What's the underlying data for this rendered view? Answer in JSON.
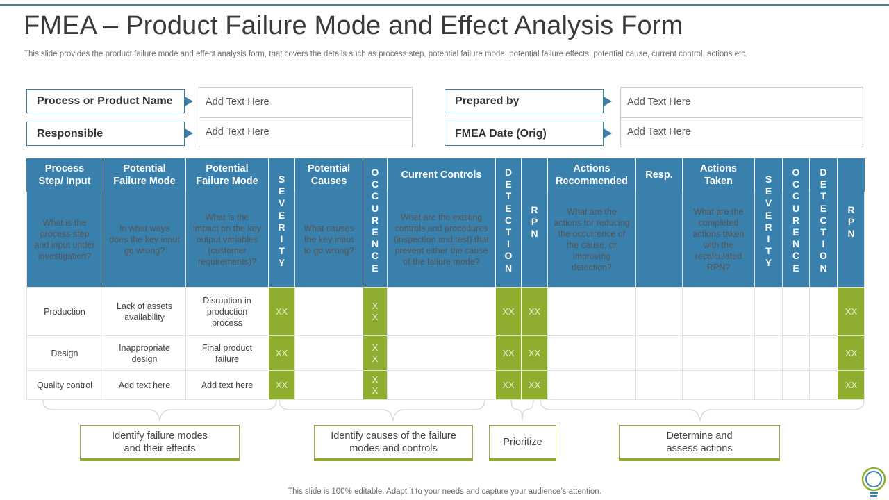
{
  "title": "FMEA – Product Failure Mode and Effect Analysis Form",
  "subtitle": "This slide provides the product failure mode and effect analysis form, that covers the details such as process step, potential failure mode, potential failure effects, potential cause, current control, actions etc.",
  "form": {
    "process_label": "Process or Product Name",
    "responsible_label": "Responsible",
    "prepared_label": "Prepared by",
    "date_label": "FMEA Date (Orig)",
    "placeholder": "Add Text Here"
  },
  "table": {
    "headers": {
      "process_step": "Process Step/ Input",
      "failure_mode_1": "Potential Failure Mode",
      "failure_mode_2": "Potential Failure Mode",
      "severity": "SEVERITY",
      "causes": "Potential Causes",
      "occurence": "OCCURENCE",
      "controls": "Current Controls",
      "detection": "DETECTION",
      "rpn": "RPN",
      "actions_recommended": "Actions Recommended",
      "resp": "Resp.",
      "actions_taken": "Actions Taken",
      "severity_2": "SEVERITY",
      "occurence_2": "OCCURENCE",
      "detection_2": "DETECTION",
      "rpn_2": "RPN"
    },
    "descriptions": {
      "process_step": "What is the process step and input under investigation?",
      "failure_mode_1": "In what ways does the key input go wrong?",
      "failure_mode_2": "What is the impact on the key output variables (customer requirements)?",
      "causes": "What causes the key input to go wrong?",
      "controls": "What are the existing controls and procedures (inspection and test) that prevent either the cause of the failure mode?",
      "actions_recommended": "What are the actions for reducing the occurrence of the cause, or improving detection?",
      "actions_taken": "What are the completed actions taken with the recalculated RPN?"
    },
    "rows": [
      {
        "step": "Production",
        "mode": "Lack of assets availability",
        "effect": "Disruption in production process",
        "severity": "XX",
        "occurence": "X X",
        "detection": "XX",
        "rpn": "XX",
        "rpn_2": "XX"
      },
      {
        "step": "Design",
        "mode": "Inappropriate design",
        "effect": "Final product failure",
        "severity": "XX",
        "occurence": "X X",
        "detection": "XX",
        "rpn": "XX",
        "rpn_2": "XX"
      },
      {
        "step": "Quality control",
        "mode": "Add text here",
        "effect": "Add text here",
        "severity": "XX",
        "occurence": "X X",
        "detection": "XX",
        "rpn": "XX",
        "rpn_2": "XX"
      }
    ]
  },
  "groups": {
    "g1": "Identify failure modes and their effects",
    "g2": "Identify causes of the failure modes and controls",
    "g3": "Prioritize",
    "g4": "Determine and assess actions"
  },
  "footer": "This slide is 100% editable. Adapt it to your needs and capture your audience’s attention.",
  "colors": {
    "header_blue": "#3a80ac",
    "green": "#8fae2f",
    "label_border": "#3d7fa6"
  },
  "icons": {
    "corner": "lightbulb-icon"
  }
}
